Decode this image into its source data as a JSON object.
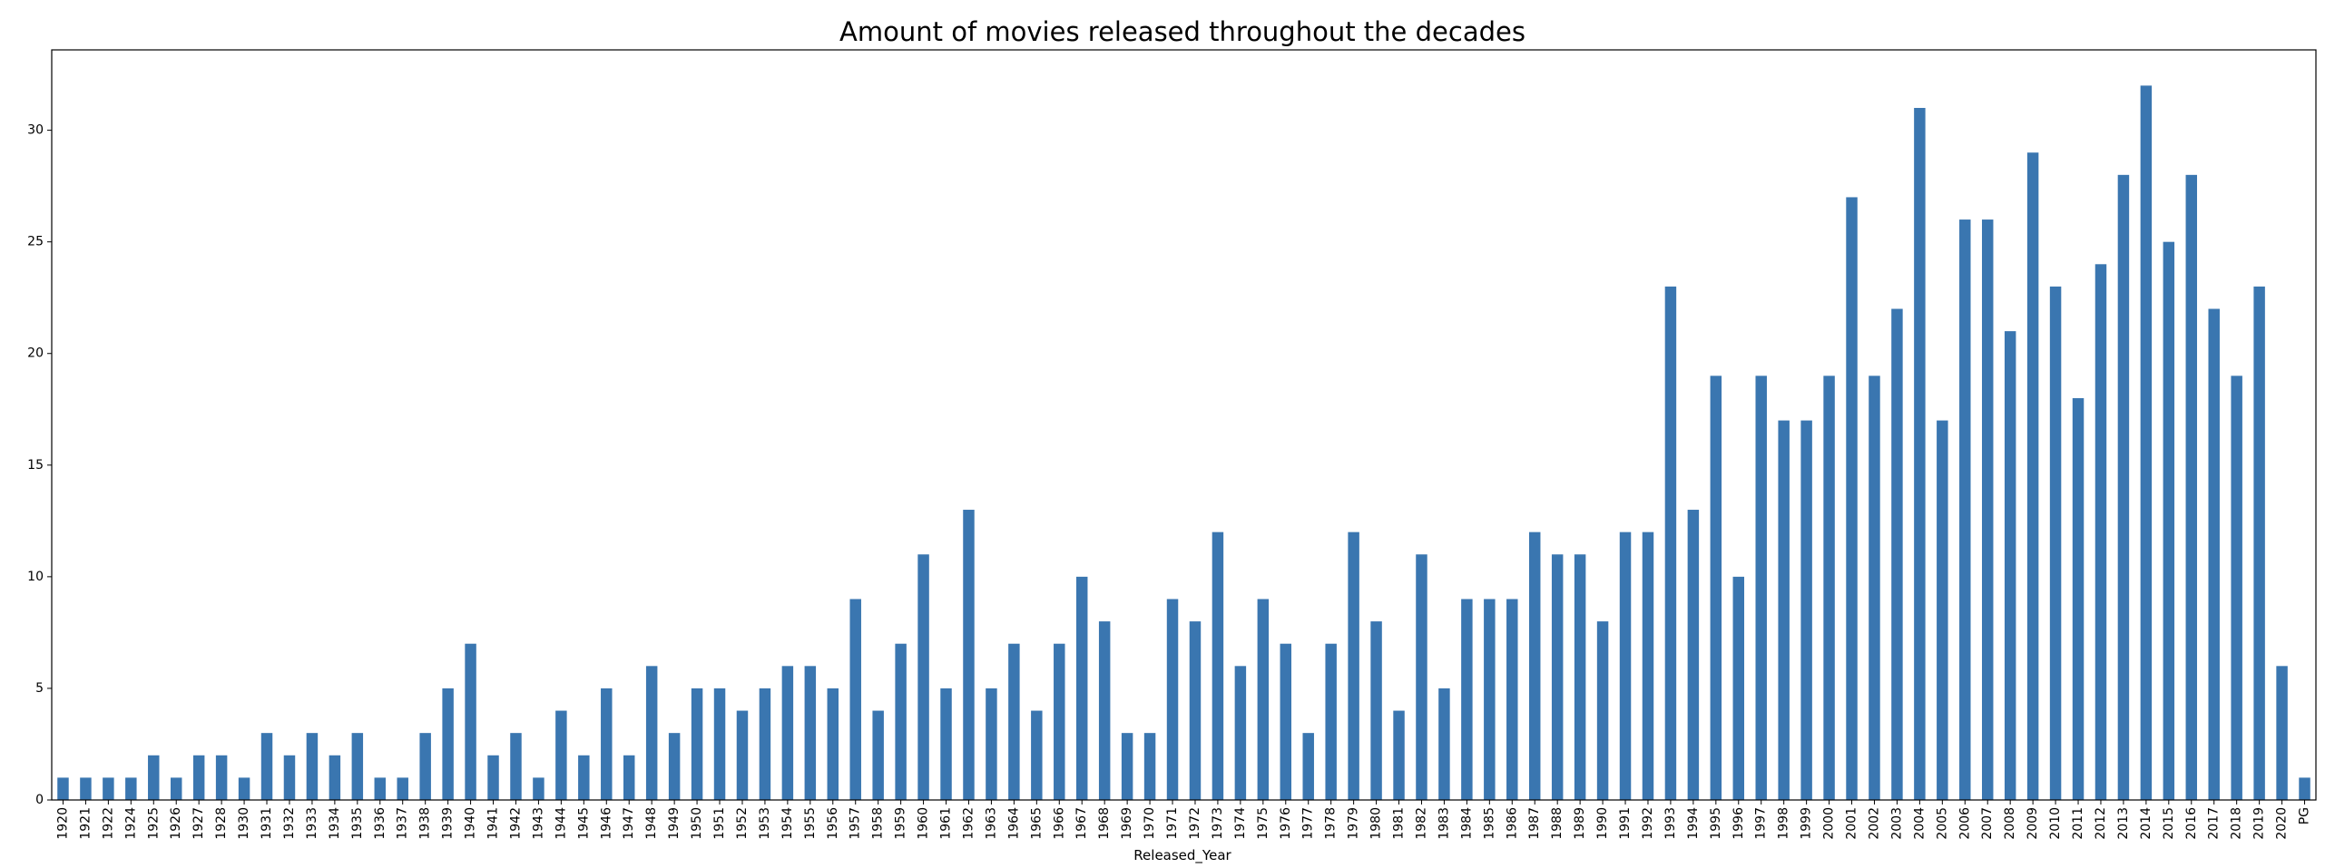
{
  "chart_data": {
    "type": "bar",
    "title": "Amount of movies released throughout the decades",
    "xlabel": "Released_Year",
    "ylabel": "",
    "ylim": [
      0,
      33.6
    ],
    "yticks": [
      0,
      5,
      10,
      15,
      20,
      25,
      30
    ],
    "grid": false,
    "legend": "none",
    "bar_color": "#3a76b0",
    "categories": [
      "1920",
      "1921",
      "1922",
      "1924",
      "1925",
      "1926",
      "1927",
      "1928",
      "1930",
      "1931",
      "1932",
      "1933",
      "1934",
      "1935",
      "1936",
      "1937",
      "1938",
      "1939",
      "1940",
      "1941",
      "1942",
      "1943",
      "1944",
      "1945",
      "1946",
      "1947",
      "1948",
      "1949",
      "1950",
      "1951",
      "1952",
      "1953",
      "1954",
      "1955",
      "1956",
      "1957",
      "1958",
      "1959",
      "1960",
      "1961",
      "1962",
      "1963",
      "1964",
      "1965",
      "1966",
      "1967",
      "1968",
      "1969",
      "1970",
      "1971",
      "1972",
      "1973",
      "1974",
      "1975",
      "1976",
      "1977",
      "1978",
      "1979",
      "1980",
      "1981",
      "1982",
      "1983",
      "1984",
      "1985",
      "1986",
      "1987",
      "1988",
      "1989",
      "1990",
      "1991",
      "1992",
      "1993",
      "1994",
      "1995",
      "1996",
      "1997",
      "1998",
      "1999",
      "2000",
      "2001",
      "2002",
      "2003",
      "2004",
      "2005",
      "2006",
      "2007",
      "2008",
      "2009",
      "2010",
      "2011",
      "2012",
      "2013",
      "2014",
      "2015",
      "2016",
      "2017",
      "2018",
      "2019",
      "2020",
      "PG"
    ],
    "values": [
      1,
      1,
      1,
      1,
      2,
      1,
      2,
      2,
      1,
      3,
      2,
      3,
      2,
      3,
      1,
      1,
      3,
      5,
      7,
      2,
      3,
      1,
      4,
      2,
      5,
      2,
      6,
      3,
      5,
      5,
      4,
      5,
      6,
      6,
      5,
      9,
      4,
      7,
      11,
      5,
      13,
      5,
      7,
      4,
      7,
      10,
      8,
      3,
      3,
      9,
      8,
      12,
      6,
      9,
      7,
      3,
      7,
      12,
      8,
      4,
      11,
      5,
      9,
      9,
      9,
      12,
      11,
      11,
      8,
      12,
      12,
      23,
      13,
      19,
      10,
      19,
      17,
      17,
      19,
      27,
      19,
      22,
      31,
      17,
      26,
      26,
      21,
      29,
      23,
      18,
      24,
      28,
      32,
      25,
      28,
      22,
      19,
      23,
      6,
      1
    ]
  }
}
